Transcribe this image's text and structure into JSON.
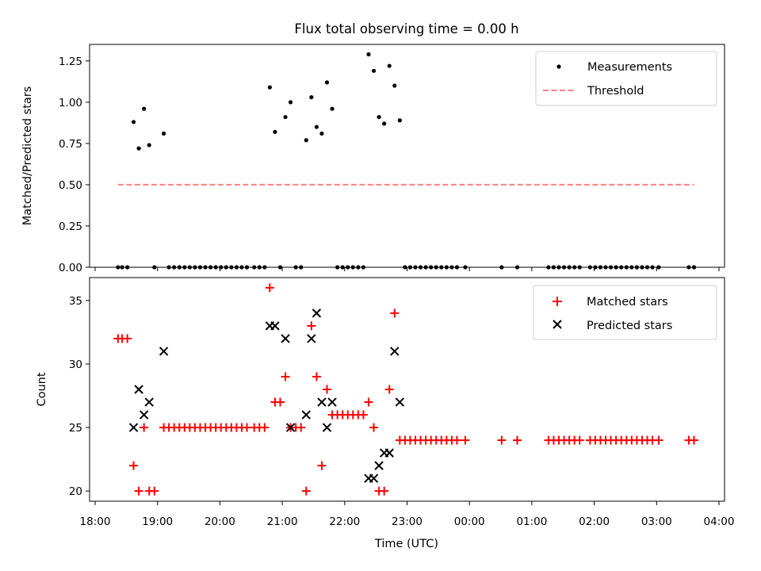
{
  "chart_data": [
    {
      "type": "scatter",
      "title": "Flux total observing time = 0.00 h",
      "xlabel": "",
      "ylabel": "Matched/Predicted stars",
      "ylim": [
        0,
        1.35
      ],
      "xlim": [
        "18:00",
        "04:00"
      ],
      "yticks": [
        "0.00",
        "0.25",
        "0.50",
        "0.75",
        "1.00",
        "1.25"
      ],
      "legend": {
        "placement": "top-right",
        "entries": [
          "Measurements",
          "Threshold"
        ]
      },
      "series": [
        {
          "name": "Measurements",
          "marker": "dot",
          "color": "#000000",
          "points": [
            [
              "18:22",
              0
            ],
            [
              "18:26",
              0
            ],
            [
              "18:31",
              0
            ],
            [
              "18:37",
              0.88
            ],
            [
              "18:42",
              0.72
            ],
            [
              "18:47",
              0.96
            ],
            [
              "18:52",
              0.74
            ],
            [
              "18:57",
              0
            ],
            [
              "19:06",
              0.81
            ],
            [
              "19:11",
              0
            ],
            [
              "19:16",
              0
            ],
            [
              "19:21",
              0
            ],
            [
              "19:26",
              0
            ],
            [
              "19:31",
              0
            ],
            [
              "19:36",
              0
            ],
            [
              "19:41",
              0
            ],
            [
              "19:46",
              0
            ],
            [
              "19:51",
              0
            ],
            [
              "19:56",
              0
            ],
            [
              "20:01",
              0
            ],
            [
              "20:06",
              0
            ],
            [
              "20:11",
              0
            ],
            [
              "20:16",
              0
            ],
            [
              "20:21",
              0
            ],
            [
              "20:26",
              0
            ],
            [
              "20:33",
              0
            ],
            [
              "20:38",
              0
            ],
            [
              "20:43",
              0
            ],
            [
              "20:48",
              1.09
            ],
            [
              "20:53",
              0.82
            ],
            [
              "20:58",
              0
            ],
            [
              "21:03",
              0.91
            ],
            [
              "21:08",
              1.0
            ],
            [
              "21:13",
              0
            ],
            [
              "21:18",
              0
            ],
            [
              "21:23",
              0.77
            ],
            [
              "21:28",
              1.03
            ],
            [
              "21:33",
              0.85
            ],
            [
              "21:38",
              0.81
            ],
            [
              "21:43",
              1.12
            ],
            [
              "21:48",
              0.96
            ],
            [
              "21:53",
              0
            ],
            [
              "21:58",
              0
            ],
            [
              "22:03",
              0
            ],
            [
              "22:08",
              0
            ],
            [
              "22:13",
              0
            ],
            [
              "22:18",
              0
            ],
            [
              "22:23",
              1.29
            ],
            [
              "22:28",
              1.19
            ],
            [
              "22:33",
              0.91
            ],
            [
              "22:38",
              0.87
            ],
            [
              "22:43",
              1.22
            ],
            [
              "22:48",
              1.1
            ],
            [
              "22:53",
              0.89
            ],
            [
              "22:58",
              0
            ],
            [
              "23:03",
              0
            ],
            [
              "23:08",
              0
            ],
            [
              "23:13",
              0
            ],
            [
              "23:18",
              0
            ],
            [
              "23:23",
              0
            ],
            [
              "23:28",
              0
            ],
            [
              "23:33",
              0
            ],
            [
              "23:38",
              0
            ],
            [
              "23:43",
              0
            ],
            [
              "23:48",
              0
            ],
            [
              "23:56",
              0
            ],
            [
              "00:31",
              0
            ],
            [
              "00:46",
              0
            ],
            [
              "01:16",
              0
            ],
            [
              "01:21",
              0
            ],
            [
              "01:26",
              0
            ],
            [
              "01:31",
              0
            ],
            [
              "01:36",
              0
            ],
            [
              "01:41",
              0
            ],
            [
              "01:46",
              0
            ],
            [
              "01:56",
              0
            ],
            [
              "02:01",
              0
            ],
            [
              "02:06",
              0
            ],
            [
              "02:11",
              0
            ],
            [
              "02:16",
              0
            ],
            [
              "02:21",
              0
            ],
            [
              "02:26",
              0
            ],
            [
              "02:31",
              0
            ],
            [
              "02:36",
              0
            ],
            [
              "02:41",
              0
            ],
            [
              "02:46",
              0
            ],
            [
              "02:51",
              0
            ],
            [
              "02:56",
              0
            ],
            [
              "03:02",
              0
            ],
            [
              "03:31",
              0
            ],
            [
              "03:36",
              0
            ]
          ]
        },
        {
          "name": "Threshold",
          "style": "dashed-line",
          "color": "#ff8080",
          "points": [
            [
              "18:22",
              0.5
            ],
            [
              "03:36",
              0.5
            ]
          ]
        }
      ]
    },
    {
      "type": "scatter",
      "title": "",
      "xlabel": "Time (UTC)",
      "ylabel": "Count",
      "ylim": [
        19.2,
        36.8
      ],
      "xlim": [
        "18:00",
        "04:00"
      ],
      "xticks": [
        "18:00",
        "19:00",
        "20:00",
        "21:00",
        "22:00",
        "23:00",
        "00:00",
        "01:00",
        "02:00",
        "03:00",
        "04:00"
      ],
      "yticks": [
        "20",
        "25",
        "30",
        "35"
      ],
      "legend": {
        "placement": "top-right",
        "entries": [
          "Matched stars",
          "Predicted stars"
        ]
      },
      "series": [
        {
          "name": "Matched stars",
          "marker": "plus",
          "color": "#ff0000",
          "points": [
            [
              "18:22",
              32
            ],
            [
              "18:26",
              32
            ],
            [
              "18:31",
              32
            ],
            [
              "18:37",
              22
            ],
            [
              "18:42",
              20
            ],
            [
              "18:47",
              25
            ],
            [
              "18:52",
              20
            ],
            [
              "18:57",
              20
            ],
            [
              "19:06",
              25
            ],
            [
              "19:11",
              25
            ],
            [
              "19:16",
              25
            ],
            [
              "19:21",
              25
            ],
            [
              "19:26",
              25
            ],
            [
              "19:31",
              25
            ],
            [
              "19:36",
              25
            ],
            [
              "19:41",
              25
            ],
            [
              "19:46",
              25
            ],
            [
              "19:51",
              25
            ],
            [
              "19:56",
              25
            ],
            [
              "20:01",
              25
            ],
            [
              "20:06",
              25
            ],
            [
              "20:11",
              25
            ],
            [
              "20:16",
              25
            ],
            [
              "20:21",
              25
            ],
            [
              "20:26",
              25
            ],
            [
              "20:33",
              25
            ],
            [
              "20:38",
              25
            ],
            [
              "20:43",
              25
            ],
            [
              "20:48",
              36
            ],
            [
              "20:53",
              27
            ],
            [
              "20:58",
              27
            ],
            [
              "21:03",
              29
            ],
            [
              "21:08",
              25
            ],
            [
              "21:13",
              25
            ],
            [
              "21:18",
              25
            ],
            [
              "21:23",
              20
            ],
            [
              "21:28",
              33
            ],
            [
              "21:33",
              29
            ],
            [
              "21:38",
              22
            ],
            [
              "21:43",
              28
            ],
            [
              "21:48",
              26
            ],
            [
              "21:53",
              26
            ],
            [
              "21:58",
              26
            ],
            [
              "22:03",
              26
            ],
            [
              "22:08",
              26
            ],
            [
              "22:13",
              26
            ],
            [
              "22:18",
              26
            ],
            [
              "22:23",
              27
            ],
            [
              "22:28",
              25
            ],
            [
              "22:33",
              20
            ],
            [
              "22:38",
              20
            ],
            [
              "22:43",
              28
            ],
            [
              "22:48",
              34
            ],
            [
              "22:53",
              24
            ],
            [
              "22:58",
              24
            ],
            [
              "23:03",
              24
            ],
            [
              "23:08",
              24
            ],
            [
              "23:13",
              24
            ],
            [
              "23:18",
              24
            ],
            [
              "23:23",
              24
            ],
            [
              "23:28",
              24
            ],
            [
              "23:33",
              24
            ],
            [
              "23:38",
              24
            ],
            [
              "23:43",
              24
            ],
            [
              "23:48",
              24
            ],
            [
              "23:56",
              24
            ],
            [
              "00:31",
              24
            ],
            [
              "00:46",
              24
            ],
            [
              "01:16",
              24
            ],
            [
              "01:21",
              24
            ],
            [
              "01:26",
              24
            ],
            [
              "01:31",
              24
            ],
            [
              "01:36",
              24
            ],
            [
              "01:41",
              24
            ],
            [
              "01:46",
              24
            ],
            [
              "01:56",
              24
            ],
            [
              "02:01",
              24
            ],
            [
              "02:06",
              24
            ],
            [
              "02:11",
              24
            ],
            [
              "02:16",
              24
            ],
            [
              "02:21",
              24
            ],
            [
              "02:26",
              24
            ],
            [
              "02:31",
              24
            ],
            [
              "02:36",
              24
            ],
            [
              "02:41",
              24
            ],
            [
              "02:46",
              24
            ],
            [
              "02:51",
              24
            ],
            [
              "02:56",
              24
            ],
            [
              "03:02",
              24
            ],
            [
              "03:31",
              24
            ],
            [
              "03:36",
              24
            ]
          ]
        },
        {
          "name": "Predicted stars",
          "marker": "x",
          "color": "#000000",
          "points": [
            [
              "18:37",
              25
            ],
            [
              "18:42",
              28
            ],
            [
              "18:47",
              26
            ],
            [
              "18:52",
              27
            ],
            [
              "19:06",
              31
            ],
            [
              "20:48",
              33
            ],
            [
              "20:53",
              33
            ],
            [
              "21:03",
              32
            ],
            [
              "21:08",
              25
            ],
            [
              "21:23",
              26
            ],
            [
              "21:28",
              32
            ],
            [
              "21:33",
              34
            ],
            [
              "21:38",
              27
            ],
            [
              "21:43",
              25
            ],
            [
              "21:48",
              27
            ],
            [
              "22:23",
              21
            ],
            [
              "22:28",
              21
            ],
            [
              "22:33",
              22
            ],
            [
              "22:38",
              23
            ],
            [
              "22:43",
              23
            ],
            [
              "22:48",
              31
            ],
            [
              "22:53",
              27
            ]
          ]
        }
      ]
    }
  ]
}
